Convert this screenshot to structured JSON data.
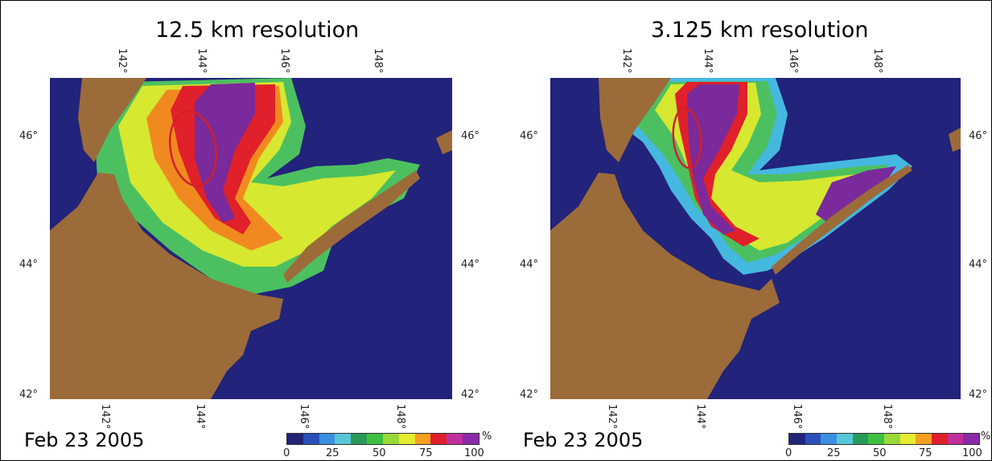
{
  "panels": [
    {
      "id": "left",
      "title": "12.5 km resolution",
      "date": "Feb 23 2005",
      "lon_labels_top": [
        "142°",
        "144°",
        "146°",
        "148°"
      ],
      "lon_labels_bottom": [
        "142°",
        "144°",
        "146°",
        "148°"
      ],
      "lat_labels_left": [
        "46°",
        "44°",
        "42°"
      ],
      "lat_labels_right": [
        "46°",
        "44°",
        "42°"
      ]
    },
    {
      "id": "right",
      "title": "3.125 km resolution",
      "date": "Feb 23 2005",
      "lon_labels_top": [
        "142°",
        "144°",
        "146°",
        "148°"
      ],
      "lon_labels_bottom": [
        "142°",
        "144°",
        "146°",
        "148°"
      ],
      "lat_labels_left": [
        "46°",
        "44°",
        "42°"
      ],
      "lat_labels_right": [
        "46°",
        "44°",
        "42°"
      ]
    }
  ],
  "colorbar": {
    "ticks": [
      "0",
      "25",
      "50",
      "75",
      "100"
    ],
    "unit": "%",
    "range": [
      0,
      100
    ],
    "colors": [
      "#23237a",
      "#2a4fb8",
      "#3a8fe0",
      "#58c7d8",
      "#2a9a5a",
      "#3fc040",
      "#9ad83a",
      "#e6ec30",
      "#f5a020",
      "#e0202a",
      "#c0309a",
      "#8a2aa8"
    ]
  },
  "map_colors": {
    "ocean": "#22237a",
    "land": "#9c6b3a",
    "ice_0_25": "#45b8e0",
    "ice_25_50": "#4cc060",
    "ice_50_75": "#d6e830",
    "ice_75_90": "#f08a20",
    "ice_90_95": "#e0202a",
    "ice_95_100": "#7a2a9a",
    "highlight_ellipse": "#d0202a"
  }
}
